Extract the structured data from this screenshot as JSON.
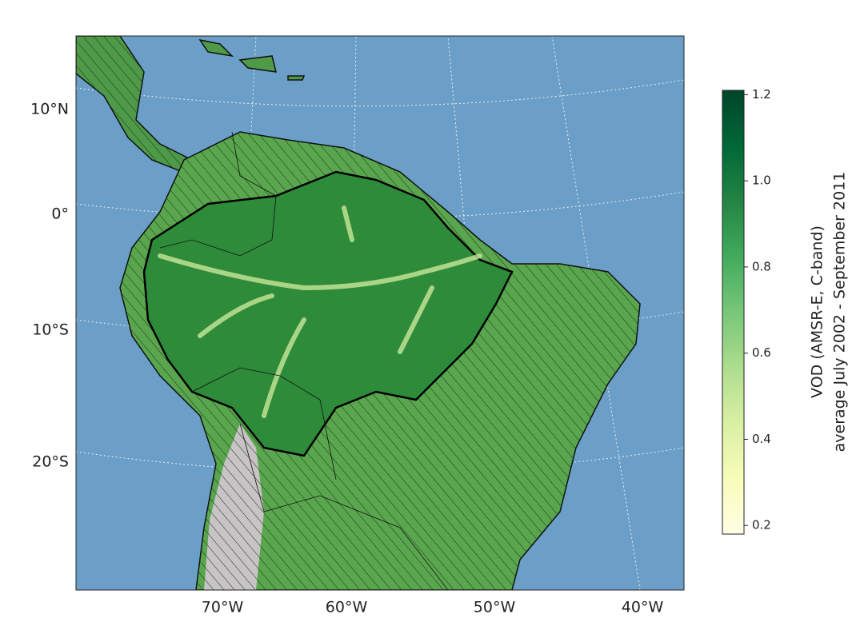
{
  "map": {
    "lat_labels": [
      "10°N",
      "0°",
      "10°S",
      "20°S"
    ],
    "lon_labels": [
      "70°W",
      "60°W",
      "50°W",
      "40°W"
    ],
    "colorbar": {
      "label_lines": [
        "VOD (AMSR-E, C-band)",
        "average July 2002 - September 2011"
      ],
      "range": [
        0.18,
        1.21
      ],
      "ticks": [
        0.2,
        0.4,
        0.6,
        0.8,
        {
          "value": 1,
          "label": "1.0"
        },
        1.2
      ],
      "colors": [
        "#ffffe5",
        "#f7fcb9",
        "#d9f0a3",
        "#addd8e",
        "#78c679",
        "#41ab5d",
        "#238443",
        "#006837",
        "#004529"
      ]
    }
  }
}
